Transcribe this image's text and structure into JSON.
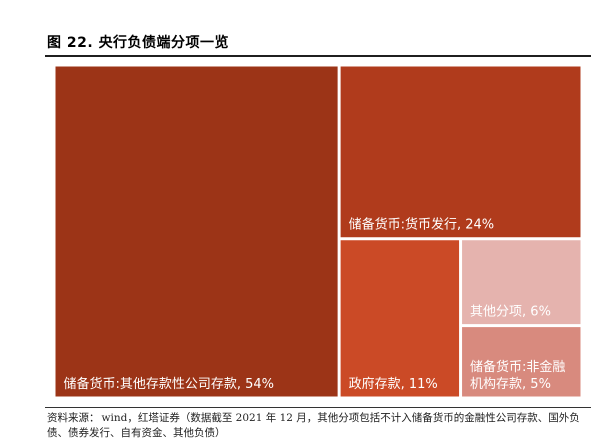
{
  "figure": {
    "number_label": "图 22.",
    "title": "央行负债端分项一览"
  },
  "chart_data": {
    "type": "treemap",
    "title": "央行负债端分项一览",
    "unit": "%",
    "items": [
      {
        "name": "储备货币:其他存款性公司存款",
        "value": 54,
        "label": "储备货币:其他存款性公司存款, 54%",
        "color": "#9c3417"
      },
      {
        "name": "储备货币:货币发行",
        "value": 24,
        "label": "储备货币:货币发行, 24%",
        "color": "#b03b1c"
      },
      {
        "name": "政府存款",
        "value": 11,
        "label": "政府存款, 11%",
        "color": "#cb4a26"
      },
      {
        "name": "其他分项",
        "value": 6,
        "label": "其他分项, 6%",
        "color": "#e5b3ae"
      },
      {
        "name": "储备货币:非金融机构存款",
        "value": 5,
        "label_lines": [
          "储备货币:非金融",
          "机构存款, 5%"
        ],
        "color": "#d88a7e"
      }
    ]
  },
  "source": {
    "label": "资料来源：",
    "text": "wind，红塔证券（数据截至 2021 年 12 月，其他分项包括不计入储备货币的金融性公司存款、国外负债、债券发行、自有资金、其他负债）"
  }
}
